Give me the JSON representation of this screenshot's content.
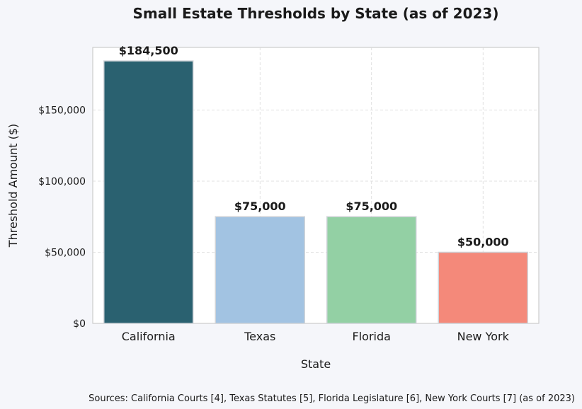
{
  "chart_data": {
    "type": "bar",
    "title": "Small Estate Thresholds by State (as of 2023)",
    "xlabel": "State",
    "ylabel": "Threshold Amount ($)",
    "categories": [
      "California",
      "Texas",
      "Florida",
      "New York"
    ],
    "values": [
      184500,
      75000,
      75000,
      50000
    ],
    "value_labels": [
      "$184,500",
      "$75,000",
      "$75,000",
      "$50,000"
    ],
    "colors": [
      "#2a6170",
      "#a2c3e2",
      "#93d0a4",
      "#f4897a"
    ],
    "ylim": [
      0,
      194000
    ],
    "yticks": [
      0,
      50000,
      100000,
      150000
    ],
    "ytick_labels": [
      "$0",
      "$50,000",
      "$100,000",
      "$150,000"
    ],
    "grid": true,
    "legend": "none"
  },
  "footer": {
    "source_note": "Sources: California Courts [4], Texas Statutes [5], Florida Legislature [6], New York Courts [7] (as of 2023)"
  }
}
